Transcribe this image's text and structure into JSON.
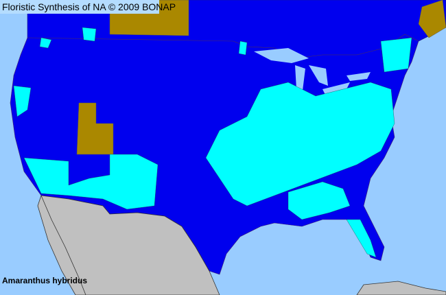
{
  "title": "Floristic Synthesis of NA © 2009 BONAP",
  "species": "Amaranthus hybridus",
  "colors": {
    "ocean": "#99ccff",
    "land_region": "#0000ee",
    "cyan_region": "#00ffff",
    "brown_region": "#aa8800",
    "mexico": "#c0c0c0",
    "border": "#6b3a3a"
  }
}
